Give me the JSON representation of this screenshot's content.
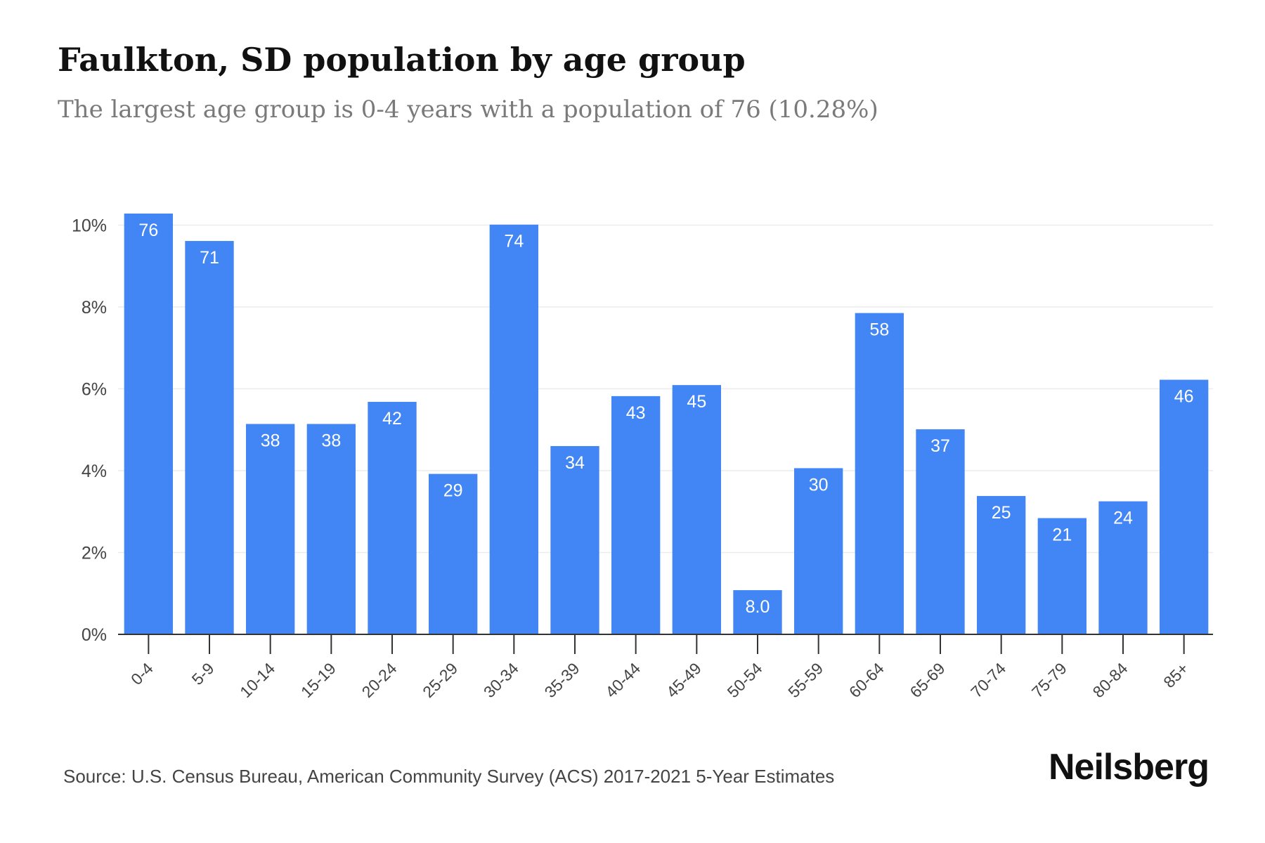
{
  "header": {
    "title": "Faulkton, SD population by age group",
    "subtitle": "The largest age group is 0-4 years with a population of 76 (10.28%)"
  },
  "footer": {
    "source": "Source: U.S. Census Bureau, American Community Survey (ACS) 2017-2021 5-Year Estimates",
    "brand": "Neilsberg"
  },
  "chart_data": {
    "type": "bar",
    "title": "Faulkton, SD population by age group",
    "xlabel": "",
    "ylabel": "",
    "categories": [
      "0-4",
      "5-9",
      "10-14",
      "15-19",
      "20-24",
      "25-29",
      "30-34",
      "35-39",
      "40-44",
      "45-49",
      "50-54",
      "55-59",
      "60-64",
      "65-69",
      "70-74",
      "75-79",
      "80-84",
      "85+"
    ],
    "values": [
      10.28,
      9.61,
      5.14,
      5.14,
      5.68,
      3.92,
      10.01,
      4.6,
      5.82,
      6.09,
      1.08,
      4.06,
      7.85,
      5.01,
      3.38,
      2.84,
      3.25,
      6.22
    ],
    "data_labels": [
      "76",
      "71",
      "38",
      "38",
      "42",
      "29",
      "74",
      "34",
      "43",
      "45",
      "8.0",
      "30",
      "58",
      "37",
      "25",
      "21",
      "24",
      "46"
    ],
    "ylim": [
      0,
      10.28
    ],
    "yticks": [
      0,
      2,
      4,
      6,
      8,
      10
    ],
    "ytick_labels": [
      "0%",
      "2%",
      "4%",
      "6%",
      "8%",
      "10%"
    ],
    "grid": true,
    "legend": "none",
    "bar_color": "#4285f4",
    "label_color": "#ffffff"
  }
}
